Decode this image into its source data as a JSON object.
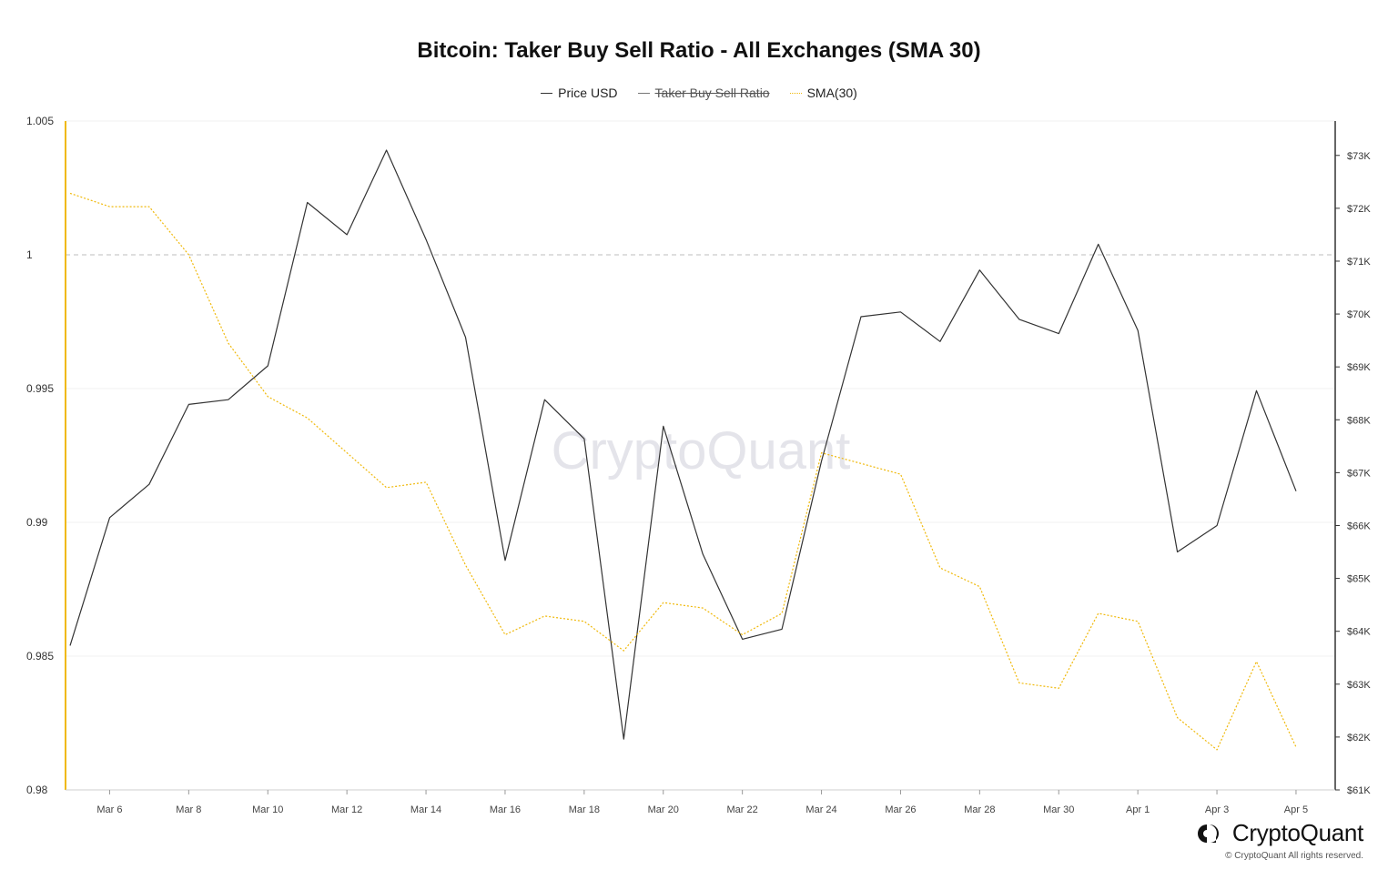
{
  "chart_data": {
    "type": "line",
    "title": "Bitcoin: Taker Buy Sell Ratio - All Exchanges (SMA 30)",
    "watermark": "CryptoQuant",
    "legend": [
      {
        "name": "Price USD",
        "color": "#333333",
        "style": "solid",
        "hidden": false
      },
      {
        "name": "Taker Buy Sell Ratio",
        "color": "#555555",
        "style": "solid",
        "hidden": true
      },
      {
        "name": "SMA(30)",
        "color": "#f0b90b",
        "style": "dotted",
        "hidden": false
      }
    ],
    "x_tick_labels": [
      "Mar 6",
      "Mar 8",
      "Mar 10",
      "Mar 12",
      "Mar 14",
      "Mar 16",
      "Mar 18",
      "Mar 20",
      "Mar 22",
      "Mar 24",
      "Mar 26",
      "Mar 28",
      "Mar 30",
      "Apr 1",
      "Apr 3",
      "Apr 5"
    ],
    "x": [
      "Mar 5",
      "Mar 6",
      "Mar 7",
      "Mar 8",
      "Mar 9",
      "Mar 10",
      "Mar 11",
      "Mar 12",
      "Mar 13",
      "Mar 14",
      "Mar 15",
      "Mar 16",
      "Mar 17",
      "Mar 18",
      "Mar 19",
      "Mar 20",
      "Mar 21",
      "Mar 22",
      "Mar 23",
      "Mar 24",
      "Mar 25",
      "Mar 26",
      "Mar 27",
      "Mar 28",
      "Mar 29",
      "Mar 30",
      "Mar 31",
      "Apr 1",
      "Apr 2",
      "Apr 3",
      "Apr 4",
      "Apr 5"
    ],
    "y_left": {
      "ticks": [
        1.005,
        1,
        0.995,
        0.99,
        0.985,
        0.98
      ],
      "tick_labels": [
        "1.005",
        "1",
        "0.995",
        "0.99",
        "0.985",
        "0.98"
      ],
      "range": [
        0.98,
        1.005
      ],
      "reference_line": 1
    },
    "y_right": {
      "ticks": [
        73000,
        72000,
        71000,
        70000,
        69000,
        68000,
        67000,
        66000,
        65000,
        64000,
        63000,
        62000,
        61000
      ],
      "tick_labels": [
        "$73K",
        "$72K",
        "$71K",
        "$70K",
        "$69K",
        "$68K",
        "$67K",
        "$66K",
        "$65K",
        "$64K",
        "$63K",
        "$62K",
        "$61K"
      ],
      "range": [
        61000,
        73650
      ]
    },
    "series": [
      {
        "name": "Price USD",
        "axis": "right",
        "values": [
          63730,
          66150,
          66780,
          68290,
          68380,
          69020,
          72110,
          71500,
          73100,
          71410,
          69560,
          65340,
          68380,
          67640,
          61960,
          67880,
          65460,
          63850,
          64040,
          67220,
          69950,
          70040,
          69480,
          70830,
          69900,
          69630,
          71320,
          69690,
          65500,
          66000,
          68550,
          66650
        ]
      },
      {
        "name": "SMA(30)",
        "axis": "left",
        "values": [
          1.0023,
          1.0018,
          1.0018,
          1.0,
          0.9967,
          0.9947,
          0.9939,
          0.9926,
          0.9913,
          0.9915,
          0.9884,
          0.9858,
          0.9865,
          0.9863,
          0.9852,
          0.987,
          0.9868,
          0.9858,
          0.9866,
          0.9926,
          0.9922,
          0.9918,
          0.9883,
          0.9876,
          0.984,
          0.9838,
          0.9866,
          0.9863,
          0.9827,
          0.9815,
          0.9848,
          0.9816
        ]
      }
    ]
  },
  "branding": {
    "name": "CryptoQuant",
    "copyright": "© CryptoQuant All rights reserved."
  }
}
